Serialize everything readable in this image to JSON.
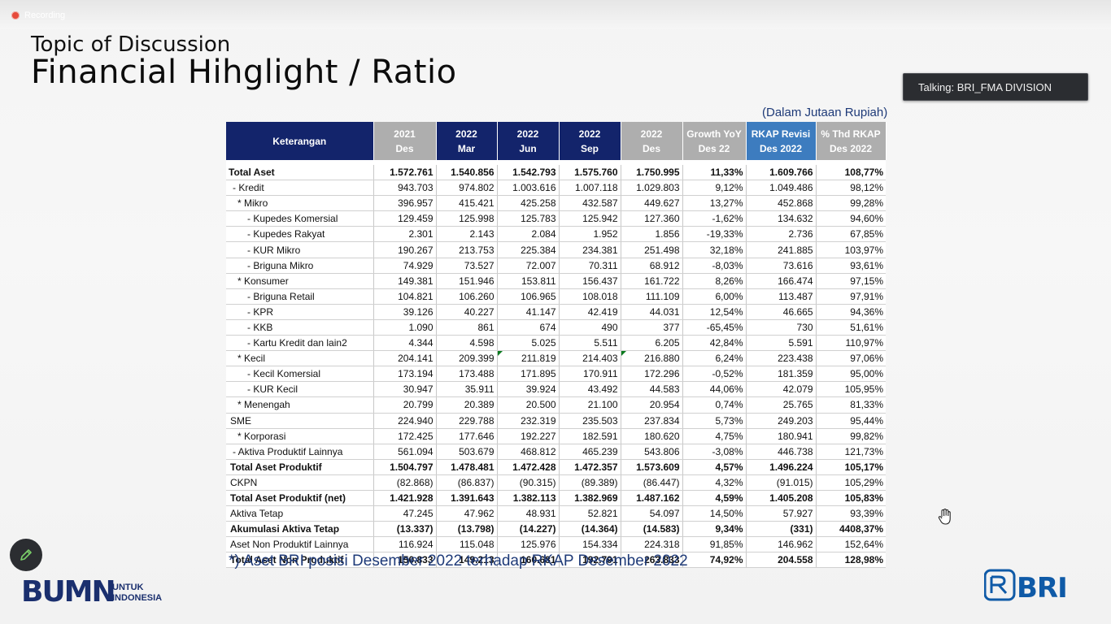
{
  "recording": {
    "label": "Recording"
  },
  "slide": {
    "subtitle": "Topic of Discussion",
    "title": "Financial Hihglight / Ratio",
    "unit": "(Dalam Jutaan Rupiah)",
    "note": "*) Aset BRI posisi Desember 2022 terhadap RKAP Desember 2022"
  },
  "talking": {
    "label": "Talking: BRI_FMA DIVISION"
  },
  "logos": {
    "bumn_main": "BUMN",
    "bumn_line1": "UNTUK",
    "bumn_line2": "INDONESIA",
    "bri": "BRI"
  },
  "colors": {
    "navy": "#13246b",
    "grey_header": "#aeaeae",
    "blue_header": "#3d7cbf",
    "accent_text": "#1e3a78"
  },
  "table": {
    "headers": [
      {
        "l1": "Keterangan",
        "l2": ""
      },
      {
        "l1": "2021",
        "l2": "Des"
      },
      {
        "l1": "2022",
        "l2": "Mar"
      },
      {
        "l1": "2022",
        "l2": "Jun"
      },
      {
        "l1": "2022",
        "l2": "Sep"
      },
      {
        "l1": "2022",
        "l2": "Des"
      },
      {
        "l1": "Growth YoY",
        "l2": "Des 22"
      },
      {
        "l1": "RKAP Revisi",
        "l2": "Des 2022"
      },
      {
        "l1": "% Thd RKAP",
        "l2": "Des 2022"
      }
    ],
    "rows": [
      {
        "label": "Total Aset",
        "v": [
          "1.572.761",
          "1.540.856",
          "1.542.793",
          "1.575.760",
          "1.750.995",
          "11,33%",
          "1.609.766",
          "108,77%"
        ]
      },
      {
        "label": "- Kredit",
        "v": [
          "943.703",
          "974.802",
          "1.003.616",
          "1.007.118",
          "1.029.803",
          "9,12%",
          "1.049.486",
          "98,12%"
        ]
      },
      {
        "label": "* Mikro",
        "v": [
          "396.957",
          "415.421",
          "425.258",
          "432.587",
          "449.627",
          "13,27%",
          "452.868",
          "99,28%"
        ]
      },
      {
        "label": "-  Kupedes Komersial",
        "v": [
          "129.459",
          "125.998",
          "125.783",
          "125.942",
          "127.360",
          "-1,62%",
          "134.632",
          "94,60%"
        ]
      },
      {
        "label": "-  Kupedes Rakyat",
        "v": [
          "2.301",
          "2.143",
          "2.084",
          "1.952",
          "1.856",
          "-19,33%",
          "2.736",
          "67,85%"
        ]
      },
      {
        "label": "-  KUR Mikro",
        "v": [
          "190.267",
          "213.753",
          "225.384",
          "234.381",
          "251.498",
          "32,18%",
          "241.885",
          "103,97%"
        ]
      },
      {
        "label": "-  Briguna Mikro",
        "v": [
          "74.929",
          "73.527",
          "72.007",
          "70.311",
          "68.912",
          "-8,03%",
          "73.616",
          "93,61%"
        ]
      },
      {
        "label": "* Konsumer",
        "v": [
          "149.381",
          "151.946",
          "153.811",
          "156.437",
          "161.722",
          "8,26%",
          "166.474",
          "97,15%"
        ]
      },
      {
        "label": "- Briguna Retail",
        "v": [
          "104.821",
          "106.260",
          "106.965",
          "108.018",
          "111.109",
          "6,00%",
          "113.487",
          "97,91%"
        ]
      },
      {
        "label": "- KPR",
        "v": [
          "39.126",
          "40.227",
          "41.147",
          "42.419",
          "44.031",
          "12,54%",
          "46.665",
          "94,36%"
        ]
      },
      {
        "label": "- KKB",
        "v": [
          "1.090",
          "861",
          "674",
          "490",
          "377",
          "-65,45%",
          "730",
          "51,61%"
        ]
      },
      {
        "label": "- Kartu Kredit dan lain2",
        "v": [
          "4.344",
          "4.598",
          "5.025",
          "5.511",
          "6.205",
          "42,84%",
          "5.591",
          "110,97%"
        ]
      },
      {
        "label": "* Kecil",
        "v": [
          "204.141",
          "209.399",
          "211.819",
          "214.403",
          "216.880",
          "6,24%",
          "223.438",
          "97,06%"
        ]
      },
      {
        "label": "-  Kecil Komersial",
        "v": [
          "173.194",
          "173.488",
          "171.895",
          "170.911",
          "172.296",
          "-0,52%",
          "181.359",
          "95,00%"
        ]
      },
      {
        "label": "-  KUR Kecil",
        "v": [
          "30.947",
          "35.911",
          "39.924",
          "43.492",
          "44.583",
          "44,06%",
          "42.079",
          "105,95%"
        ]
      },
      {
        "label": "* Menengah",
        "v": [
          "20.799",
          "20.389",
          "20.500",
          "21.100",
          "20.954",
          "0,74%",
          "25.765",
          "81,33%"
        ]
      },
      {
        "label": "SME",
        "v": [
          "224.940",
          "229.788",
          "232.319",
          "235.503",
          "237.834",
          "5,73%",
          "249.203",
          "95,44%"
        ]
      },
      {
        "label": "* Korporasi",
        "v": [
          "172.425",
          "177.646",
          "192.227",
          "182.591",
          "180.620",
          "4,75%",
          "180.941",
          "99,82%"
        ]
      },
      {
        "label": "- Aktiva Produktif Lainnya",
        "v": [
          "561.094",
          "503.679",
          "468.812",
          "465.239",
          "543.806",
          "-3,08%",
          "446.738",
          "121,73%"
        ]
      },
      {
        "label": "Total Aset Produktif",
        "v": [
          "1.504.797",
          "1.478.481",
          "1.472.428",
          "1.472.357",
          "1.573.609",
          "4,57%",
          "1.496.224",
          "105,17%"
        ]
      },
      {
        "label": "CKPN",
        "v": [
          "(82.868)",
          "(86.837)",
          "(90.315)",
          "(89.389)",
          "(86.447)",
          "4,32%",
          "(91.015)",
          "105,29%"
        ]
      },
      {
        "label": "Total Aset Produktif (net)",
        "v": [
          "1.421.928",
          "1.391.643",
          "1.382.113",
          "1.382.969",
          "1.487.162",
          "4,59%",
          "1.405.208",
          "105,83%"
        ]
      },
      {
        "label": "Aktiva Tetap",
        "v": [
          "47.245",
          "47.962",
          "48.931",
          "52.821",
          "54.097",
          "14,50%",
          "57.927",
          "93,39%"
        ]
      },
      {
        "label": "Akumulasi Aktiva Tetap",
        "v": [
          "(13.337)",
          "(13.798)",
          "(14.227)",
          "(14.364)",
          "(14.583)",
          "9,34%",
          "(331)",
          "4408,37%"
        ]
      },
      {
        "label": "Aset Non Produktif Lainnya",
        "v": [
          "116.924",
          "115.048",
          "125.976",
          "154.334",
          "224.318",
          "91,85%",
          "146.962",
          "152,64%"
        ]
      },
      {
        "label": "Total Aset Non Produktif",
        "v": [
          "150.833",
          "149.213",
          "160.681",
          "192.791",
          "263.833",
          "74,92%",
          "204.558",
          "128,98%"
        ]
      }
    ]
  }
}
